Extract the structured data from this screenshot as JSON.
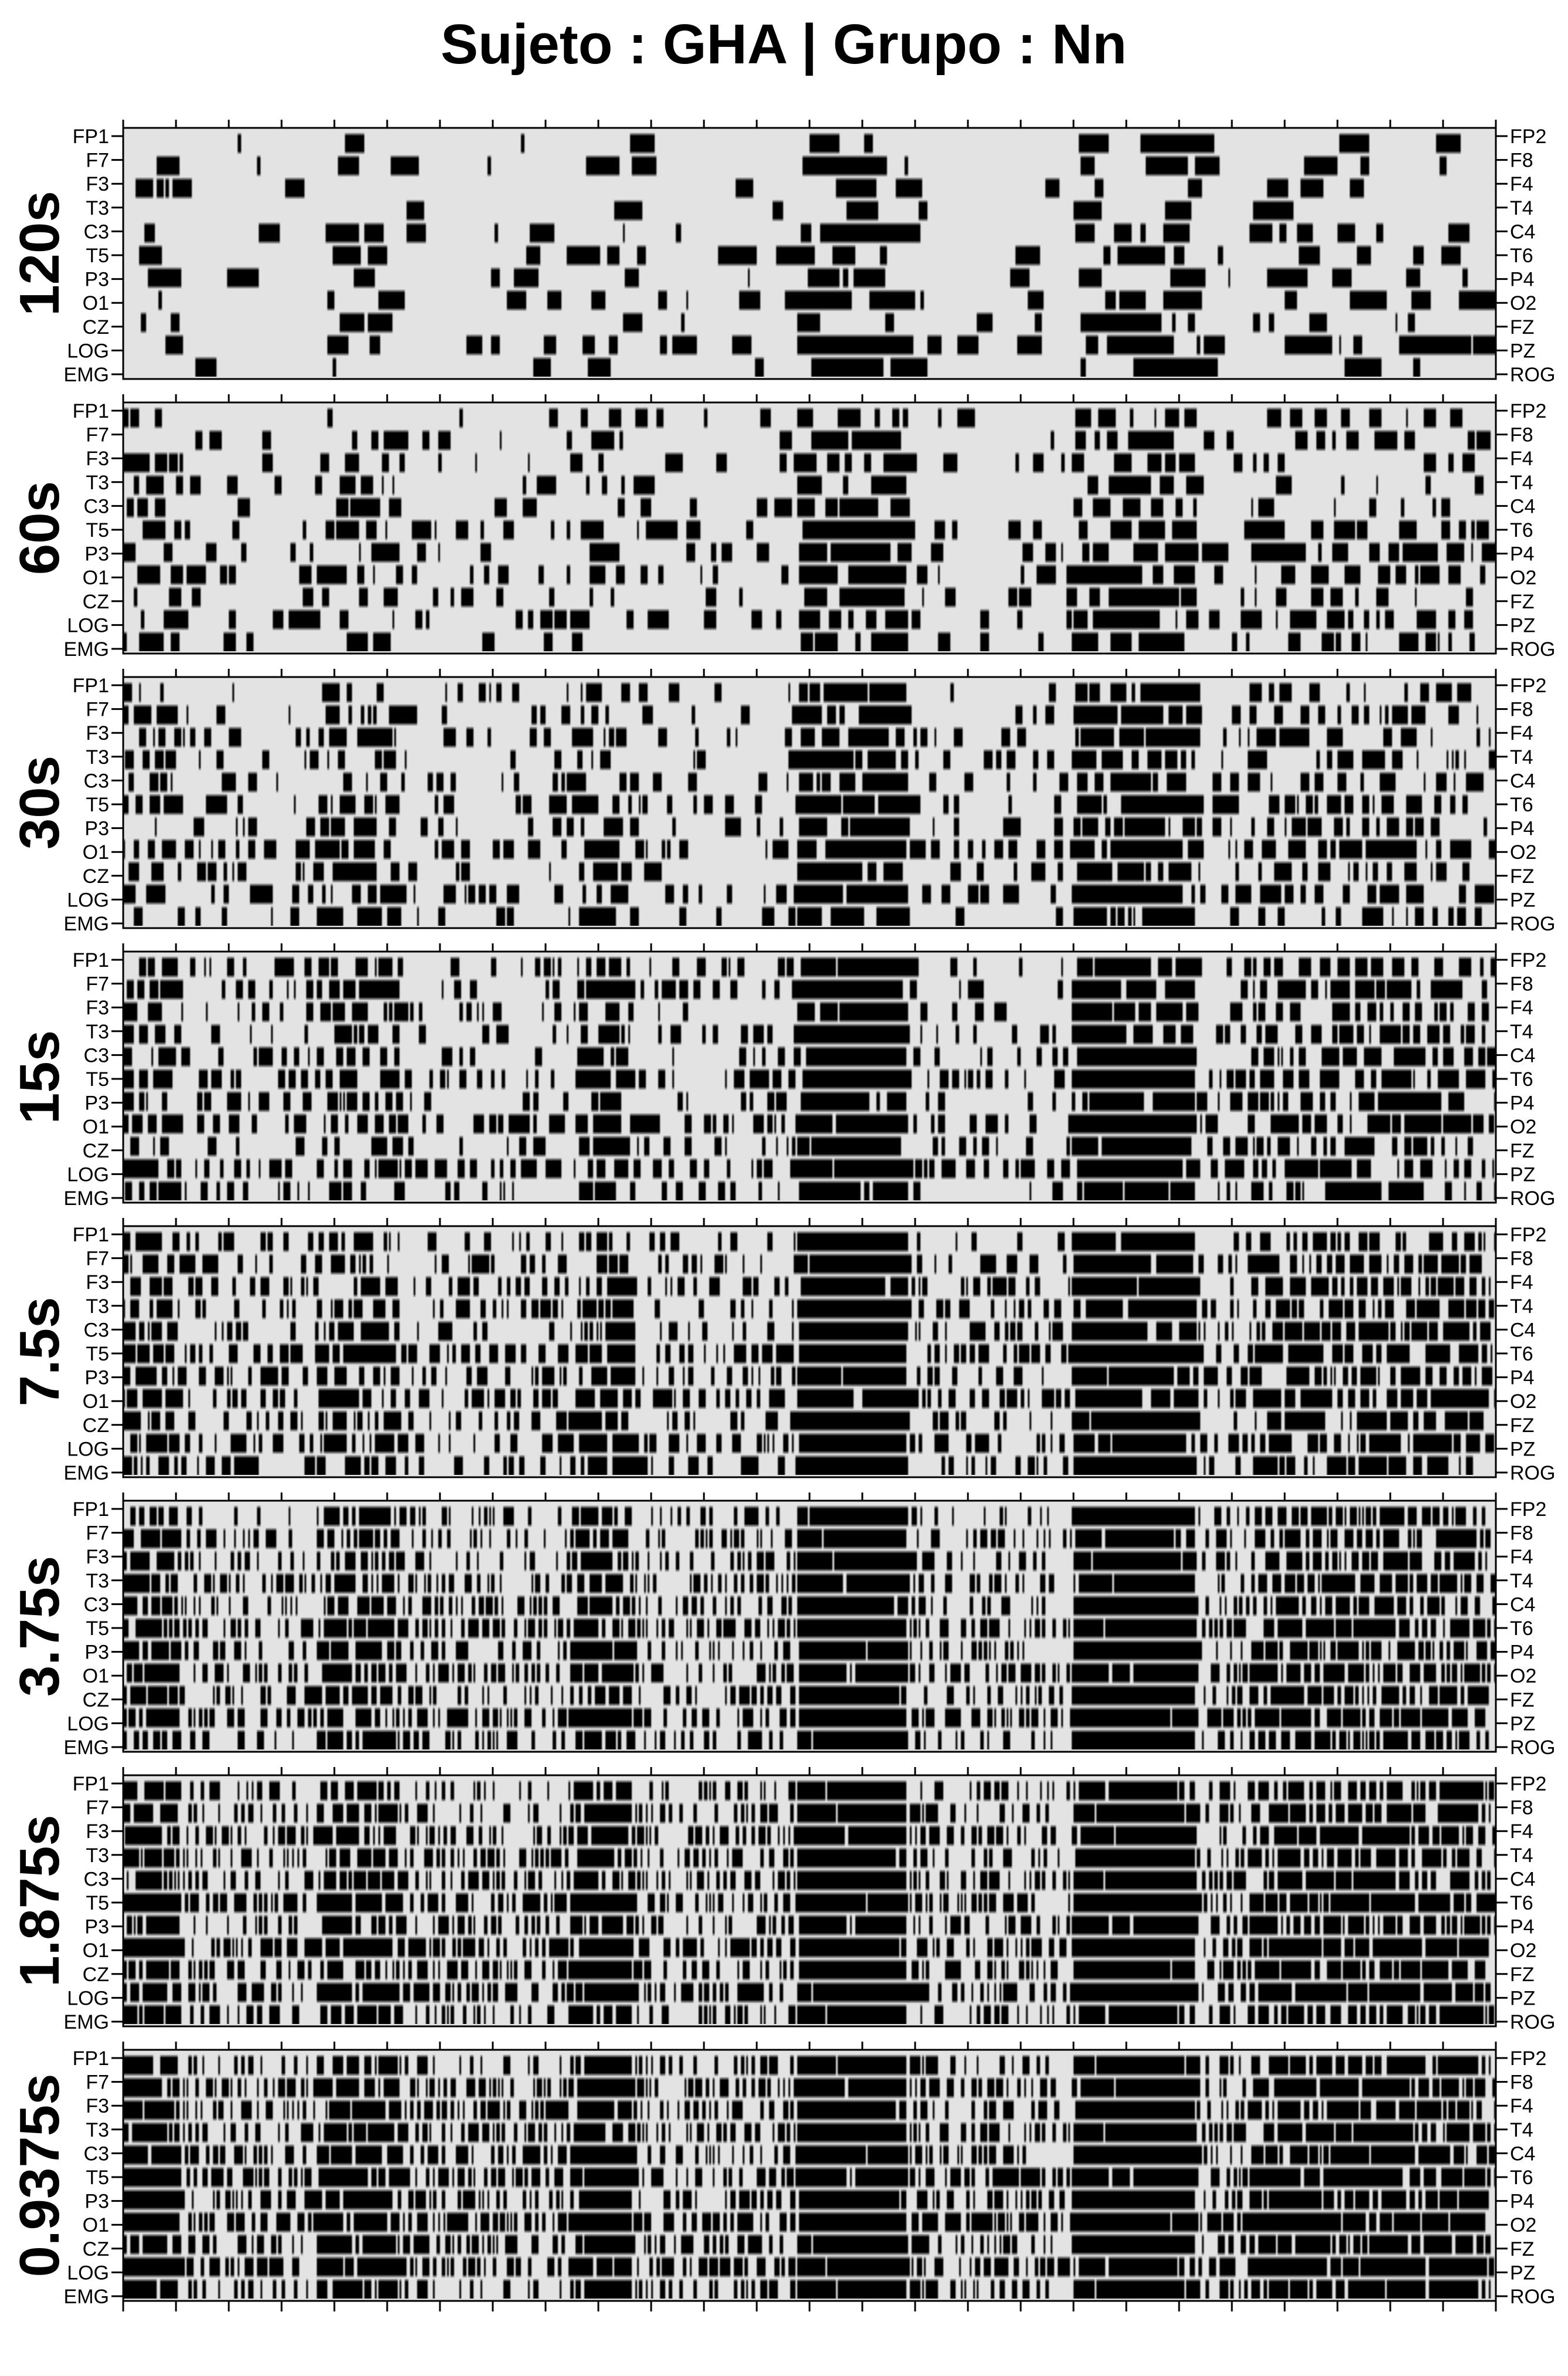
{
  "title": "Sujeto : GHA  | Grupo :  Nn",
  "chart_data": {
    "type": "heatmap",
    "title": "Sujeto : GHA  | Grupo :  Nn",
    "left_channels": [
      "FP1",
      "F7",
      "F3",
      "T3",
      "C3",
      "T5",
      "P3",
      "O1",
      "CZ",
      "LOG",
      "EMG"
    ],
    "right_channels": [
      "FP2",
      "F8",
      "F4",
      "T4",
      "C4",
      "T6",
      "P4",
      "O2",
      "FZ",
      "PZ",
      "ROG"
    ],
    "windows": [
      "120s",
      "60s",
      "30s",
      "15s",
      "7.5s",
      "3.75s",
      "1.875s",
      "0.9375s"
    ],
    "values": "binary (black = event, light grey = no event), one row per channel, density of black increasing as the window shrinks",
    "colors": {
      "event": "#000000",
      "background": "#e3e3e3"
    }
  }
}
